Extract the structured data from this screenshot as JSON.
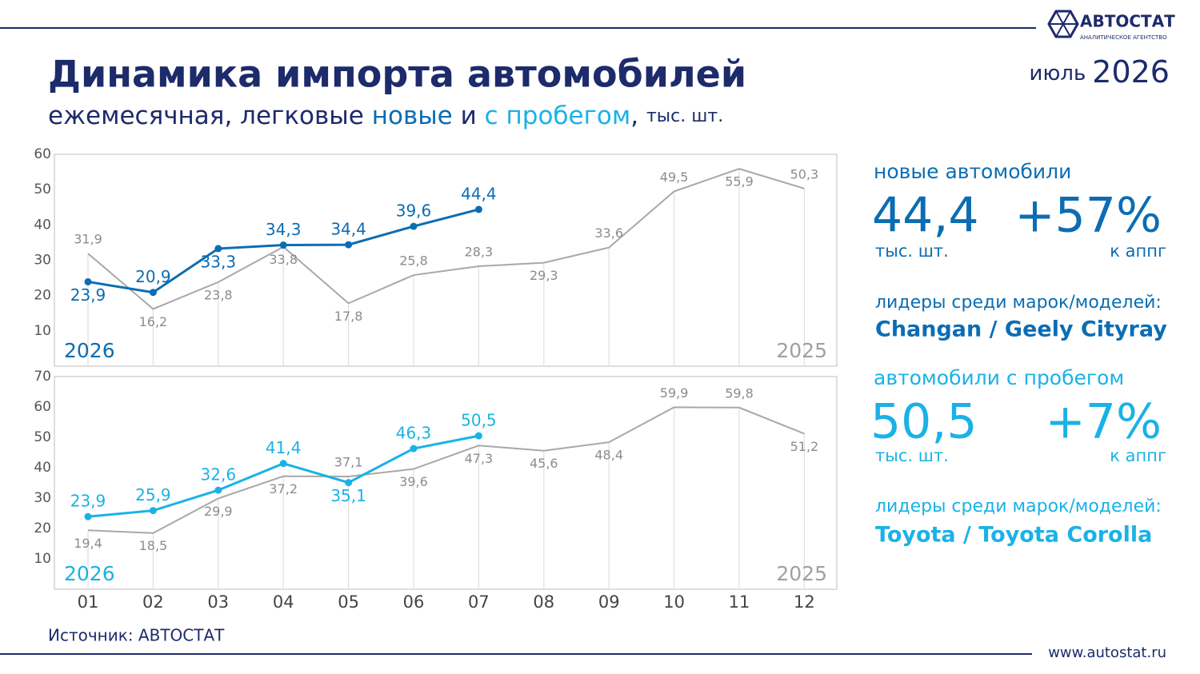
{
  "header": {
    "title": "Динамика импорта автомобилей",
    "subtitle": [
      "ежемесячная, легковые ",
      "новые",
      " и ",
      "с пробегом",
      ", ",
      "тыс. шт."
    ],
    "month": "июль",
    "year": "2026",
    "logo": "АВТОСТАТ",
    "logo_sub": "АНАЛИТИЧЕСКОЕ АГЕНТСТВО"
  },
  "chart_data": [
    {
      "type": "line",
      "ylim": [
        0,
        60
      ],
      "yticks": [
        10,
        20,
        30,
        40,
        50,
        60
      ],
      "series": [
        {
          "name": "2026",
          "color": "#0b6db3",
          "values": [
            23.9,
            20.9,
            33.3,
            34.3,
            34.4,
            39.6,
            44.4,
            null,
            null,
            null,
            null,
            null
          ],
          "value_labels": [
            "23,9",
            "20,9",
            "33,3",
            "34,3",
            "34,4",
            "39,6",
            "44,4",
            null,
            null,
            null,
            null,
            null
          ]
        },
        {
          "name": "2025",
          "color": "#a8a8a8",
          "values": [
            31.9,
            16.2,
            23.8,
            33.8,
            17.8,
            25.8,
            28.3,
            29.3,
            33.6,
            49.5,
            55.9,
            50.3
          ],
          "value_labels": [
            "31,9",
            "16,2",
            "23,8",
            "33,8",
            "17,8",
            "25,8",
            "28,3",
            "29,3",
            "33,6",
            "49,5",
            "55,9",
            "50,3"
          ]
        }
      ]
    },
    {
      "type": "line",
      "categories": [
        "01",
        "02",
        "03",
        "04",
        "05",
        "06",
        "07",
        "08",
        "09",
        "10",
        "11",
        "12"
      ],
      "ylim": [
        0,
        70
      ],
      "yticks": [
        10,
        20,
        30,
        40,
        50,
        60,
        70
      ],
      "series": [
        {
          "name": "2026",
          "color": "#1ab2e6",
          "values": [
            23.9,
            25.9,
            32.6,
            41.4,
            35.1,
            46.3,
            50.5,
            null,
            null,
            null,
            null,
            null
          ],
          "value_labels": [
            "23,9",
            "25,9",
            "32,6",
            "41,4",
            "35,1",
            "46,3",
            "50,5",
            null,
            null,
            null,
            null,
            null
          ]
        },
        {
          "name": "2025",
          "color": "#a8a8a8",
          "values": [
            19.4,
            18.5,
            29.9,
            37.2,
            37.1,
            39.6,
            47.3,
            45.6,
            48.4,
            59.9,
            59.8,
            51.2
          ],
          "value_labels": [
            "19,4",
            "18,5",
            "29,9",
            "37,2",
            "37,1",
            "39,6",
            "47,3",
            "45,6",
            "48,4",
            "59,9",
            "59,8",
            "51,2"
          ]
        }
      ]
    }
  ],
  "panel": [
    {
      "label": "новые автомобили",
      "value": "44,4",
      "unit": "тыс. шт.",
      "change": "+57%",
      "change_label": "к аппг",
      "leaders_label": "лидеры среди марок/моделей:",
      "leaders": "Changan / Geely Cityray"
    },
    {
      "label": "автомобили с пробегом",
      "value": "50,5",
      "unit": "тыс. шт.",
      "change": "+7%",
      "change_label": "к аппг",
      "leaders_label": "лидеры среди марок/моделей:",
      "leaders": "Toyota / Toyota Corolla"
    }
  ],
  "footer": {
    "source": "Источник: АВТОСТАТ",
    "site": "www.autostat.ru"
  }
}
